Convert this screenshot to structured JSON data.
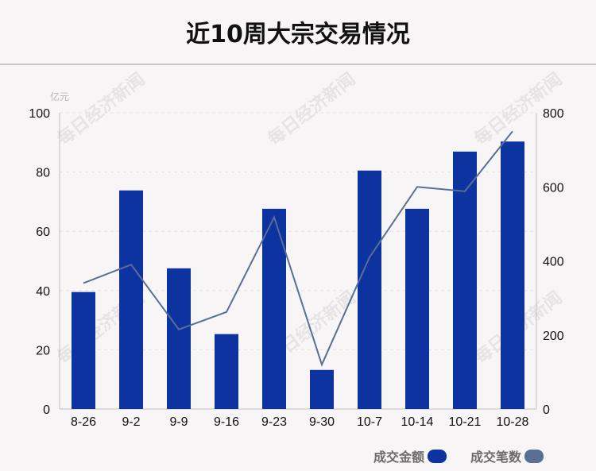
{
  "title": "近10周大宗交易情况",
  "colors": {
    "bar": "#0c33a0",
    "line": "#5a6e96",
    "axis": "#bfbfbf",
    "grid": "#e6e2e4"
  },
  "watermark": "每日经济新闻",
  "chart_data": {
    "type": "bar",
    "categories": [
      "8-26",
      "9-2",
      "9-9",
      "9-16",
      "9-23",
      "9-30",
      "10-7",
      "10-14",
      "10-21",
      "10-28"
    ],
    "series": [
      {
        "name": "成交金额",
        "type": "bar",
        "axis": "left",
        "values": [
          39.5,
          73.8,
          47.5,
          25.3,
          67.6,
          13.2,
          80.5,
          67.6,
          86.9,
          90.3
        ]
      },
      {
        "name": "成交笔数",
        "type": "line",
        "axis": "right",
        "values": [
          340,
          390,
          215,
          262,
          518,
          120,
          410,
          600,
          588,
          750
        ]
      }
    ],
    "y_left": {
      "unit": "亿元",
      "range": [
        0,
        100
      ],
      "ticks": [
        "0",
        "20",
        "40",
        "60",
        "80",
        "100"
      ]
    },
    "y_right": {
      "range": [
        0,
        800
      ],
      "ticks": [
        "0",
        "200",
        "400",
        "600",
        "800"
      ]
    },
    "grid": true,
    "legend_position": "bottom-right"
  }
}
